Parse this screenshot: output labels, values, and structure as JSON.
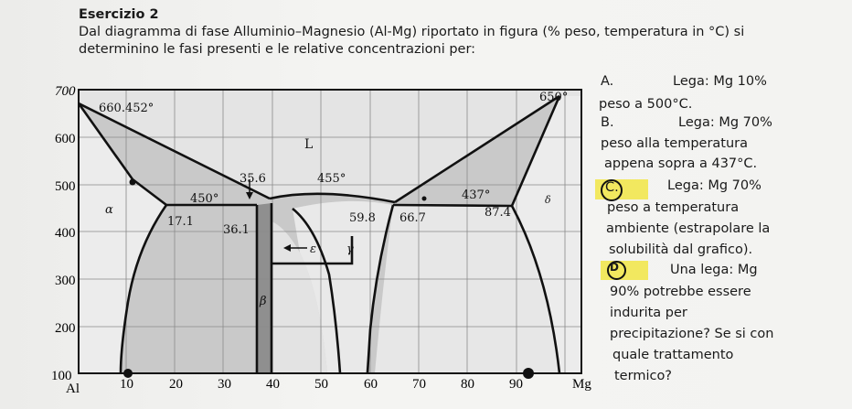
{
  "exercise": {
    "title": "Esercizio 2",
    "intro_line1": "Dal diagramma di fase Alluminio–Magnesio (Al-Mg) riportato in figura (% peso, temperatura in °C) si",
    "intro_line2": "determinino le fasi presenti e le relative concentrazioni per:"
  },
  "questions": {
    "a_marker": "A.",
    "a_text1": "Lega: Mg 10%",
    "a_text2": "peso a 500°C.",
    "b_marker": "B.",
    "b_text1": "Lega: Mg 70%",
    "b_text2": "peso alla temperatura",
    "b_text3": "appena sopra a 437°C.",
    "c_marker": "C.",
    "c_text1": "Lega: Mg 70%",
    "c_text2": "peso a temperatura",
    "c_text3": "ambiente (estrapolare la",
    "c_text4": "solubilità dal grafico).",
    "d_marker": "D",
    "d_text1": "Una lega: Mg",
    "d_text2": "90% potrebbe essere",
    "d_text3": "indurita per",
    "d_text4": "precipitazione? Se si con",
    "d_text5": "quale trattamento",
    "d_text6": "termico?"
  },
  "diagram": {
    "y_ticks": [
      "700",
      "600",
      "500",
      "400",
      "300",
      "200",
      "100"
    ],
    "x_ticks": [
      "10",
      "20",
      "30",
      "40",
      "50",
      "60",
      "70",
      "80",
      "90"
    ],
    "x_left": "Al",
    "x_right": "Mg",
    "labels": {
      "al_melt": "660.452°",
      "mg_melt": "650°",
      "liquid": "L",
      "c356": "35.6",
      "c455": "455°",
      "t450": "450°",
      "t437": "437°",
      "c171": "17.1",
      "c361": "36.1",
      "c598": "59.8",
      "c667": "66.7",
      "c874": "87.4",
      "alpha": "α",
      "beta": "β",
      "gamma": "γ",
      "epsilon": "ε",
      "delta": "δ"
    }
  }
}
